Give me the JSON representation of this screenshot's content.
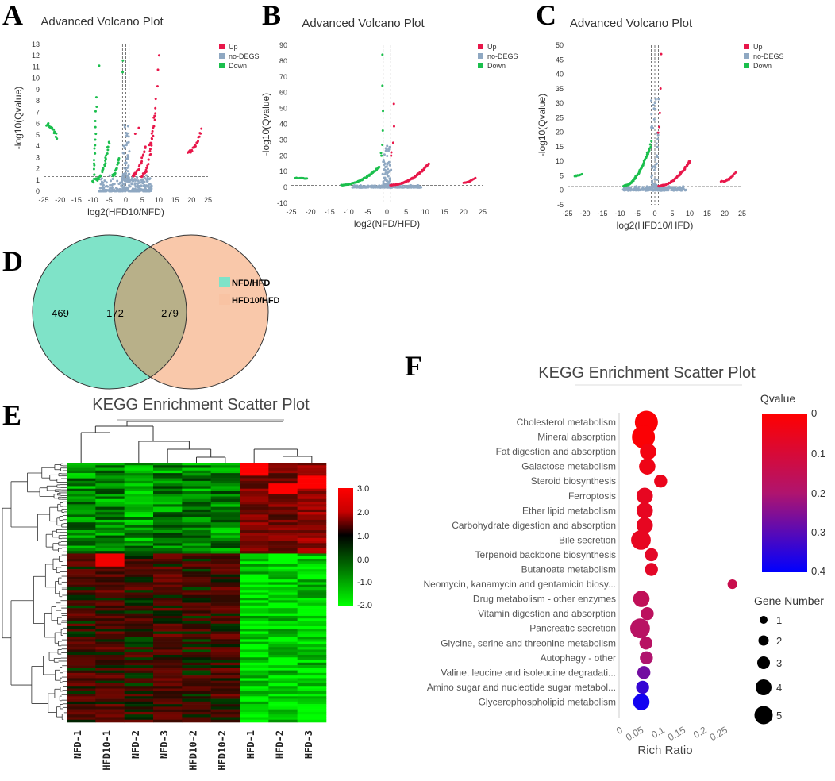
{
  "panel_letters": [
    "A",
    "B",
    "C",
    "D",
    "E",
    "F"
  ],
  "colors": {
    "up": "#e8174a",
    "no": "#8fa8c2",
    "down": "#1bbf4d",
    "venn1": "#7fe3c8",
    "venn2": "#f9c3a3",
    "venn_overlap": "#b8b089"
  },
  "chart_data": [
    {
      "panel": "A",
      "type": "scatter",
      "title": "Advanced Volcano Plot",
      "xlabel": "log2(HFD10/NFD)",
      "ylabel": "-log10(Qvalue)",
      "xlim": [
        -25,
        25
      ],
      "ylim": [
        0,
        13
      ],
      "xticks": [
        -25,
        -20,
        -15,
        -10,
        -5,
        0,
        5,
        10,
        15,
        20,
        25
      ],
      "yticks": [
        0,
        1,
        2,
        3,
        4,
        5,
        6,
        7,
        8,
        9,
        10,
        11,
        12,
        13
      ],
      "threshold_y": 1.3,
      "threshold_x": [
        -1,
        0,
        1
      ],
      "legend": [
        "Up",
        "no-DEGS",
        "Down"
      ],
      "clusters": {
        "down": [
          [
            -24,
            5.9,
            -21,
            4.7,
            18
          ],
          [
            -10,
            0.8,
            -9,
            8.3,
            22
          ],
          [
            -9,
            1.0,
            -5,
            4.5,
            30
          ],
          [
            -8,
            11.2,
            -8,
            11.2,
            1
          ],
          [
            -4,
            1.4,
            -2,
            3,
            20
          ],
          [
            -1,
            10.5,
            -1,
            11.5,
            2
          ]
        ],
        "up": [
          [
            5,
            1.4,
            9,
            7,
            30
          ],
          [
            7,
            4,
            10,
            12,
            12
          ],
          [
            19,
            3.5,
            23,
            5.4,
            20
          ],
          [
            2,
            1.4,
            6,
            4,
            25
          ],
          [
            3,
            5,
            4,
            5.5,
            2
          ]
        ],
        "no": [
          [
            -8,
            0,
            8,
            1.3,
            260
          ],
          [
            -1,
            1,
            1,
            6.5,
            60
          ]
        ]
      }
    },
    {
      "panel": "B",
      "type": "scatter",
      "title": "Advanced Volcano Plot",
      "xlabel": "log2(NFD/HFD)",
      "ylabel": "-log10(Qvalue)",
      "xlim": [
        -25,
        25
      ],
      "ylim": [
        -10,
        90
      ],
      "xticks": [
        -25,
        -20,
        -15,
        -10,
        -5,
        0,
        5,
        10,
        15,
        20,
        25
      ],
      "yticks": [
        -10,
        0,
        10,
        20,
        30,
        40,
        50,
        60,
        70,
        80,
        90
      ],
      "threshold_y": 1.3,
      "threshold_x": [
        -1,
        0,
        1
      ],
      "legend": [
        "Up",
        "no-DEGS",
        "Down"
      ],
      "clusters": {
        "down": [
          [
            -24,
            6,
            -21,
            5.5,
            12
          ],
          [
            -12,
            1.5,
            -2,
            13,
            70
          ],
          [
            -1.5,
            20,
            -1,
            84,
            7
          ]
        ],
        "up": [
          [
            1,
            1.5,
            11,
            15,
            90
          ],
          [
            20,
            3,
            23,
            6,
            14
          ],
          [
            1,
            20,
            2,
            53,
            5
          ]
        ],
        "no": [
          [
            -9,
            0,
            9,
            1.3,
            260
          ],
          [
            -1,
            1,
            1,
            28,
            70
          ]
        ]
      }
    },
    {
      "panel": "C",
      "type": "scatter",
      "title": "Advanced Volcano Plot",
      "xlabel": "log2(HFD10/HFD)",
      "ylabel": "-log10(Qvalue)",
      "xlim": [
        -25,
        25
      ],
      "ylim": [
        -5,
        50
      ],
      "xticks": [
        -25,
        -20,
        -15,
        -10,
        -5,
        0,
        5,
        10,
        15,
        20,
        25
      ],
      "yticks": [
        -5,
        0,
        5,
        10,
        15,
        20,
        25,
        30,
        35,
        40,
        45,
        50
      ],
      "threshold_y": 1.3,
      "threshold_x": [
        -1,
        0,
        1
      ],
      "legend": [
        "Up",
        "no-DEGS",
        "Down"
      ],
      "clusters": {
        "down": [
          [
            -23,
            5,
            -21,
            5.5,
            10
          ],
          [
            -9,
            1.5,
            -2,
            13,
            60
          ],
          [
            -2,
            13,
            -1,
            17,
            8
          ]
        ],
        "up": [
          [
            1,
            1.5,
            10,
            10,
            70
          ],
          [
            19,
            3,
            23,
            6,
            16
          ],
          [
            1,
            20,
            2,
            47,
            5
          ]
        ],
        "no": [
          [
            -9,
            0,
            9,
            1.3,
            260
          ],
          [
            -1,
            1,
            1,
            32,
            60
          ]
        ]
      }
    },
    {
      "panel": "D",
      "type": "venn",
      "sets": [
        "NFD/HFD",
        "HFD10/HFD"
      ],
      "values": {
        "only_a": "469",
        "both": "172",
        "only_b": "279"
      }
    },
    {
      "panel": "E",
      "type": "heatmap",
      "title": "KEGG Enrichment Scatter Plot",
      "columns": [
        "NFD-1",
        "HFD10-1",
        "NFD-2",
        "NFD-3",
        "HFD10-2",
        "HFD10-2",
        "HFD-1",
        "HFD-2",
        "HFD-3"
      ],
      "colorbar": {
        "ticks": [
          "3.0",
          "2.0",
          "1.0",
          "0.0",
          "-1.0",
          "-2.0"
        ],
        "range": [
          -2,
          3
        ]
      },
      "rows": 100,
      "row_groups": [
        {
          "from": 0,
          "to": 35,
          "means": [
            -1.0,
            -1.0,
            -1.1,
            -1.0,
            -1.0,
            -1.0,
            1.2,
            1.0,
            1.5
          ]
        },
        {
          "from": 35,
          "to": 100,
          "means": [
            0.4,
            0.5,
            0.3,
            0.5,
            0.3,
            0.5,
            -1.7,
            -1.7,
            -1.7
          ]
        }
      ]
    },
    {
      "panel": "F",
      "type": "scatter",
      "title": "KEGG Enrichment Scatter Plot",
      "xlabel": "Rich Ratio",
      "xticks": [
        "0",
        "0.05",
        "0.1",
        "0.15",
        "0.2",
        "0.25"
      ],
      "xlim": [
        -0.01,
        0.27
      ],
      "colorbar": {
        "title": "Qvalue",
        "ticks": [
          "0",
          "0.1",
          "0.2",
          "0.3",
          "0.4"
        ],
        "range": [
          0,
          0.4
        ]
      },
      "size_legend": {
        "title": "Gene Number",
        "values": [
          "1",
          "2",
          "3",
          "4",
          "5"
        ]
      },
      "terms": [
        {
          "name": "Cholesterol metabolism",
          "rich": 0.055,
          "q": 0.01,
          "n": 5
        },
        {
          "name": "Mineral absorption",
          "rich": 0.048,
          "q": 0.01,
          "n": 5
        },
        {
          "name": "Fat digestion and absorption",
          "rich": 0.059,
          "q": 0.03,
          "n": 3
        },
        {
          "name": "Galactose metabolism",
          "rich": 0.057,
          "q": 0.04,
          "n": 3
        },
        {
          "name": "Steroid biosynthesis",
          "rich": 0.089,
          "q": 0.05,
          "n": 2
        },
        {
          "name": "Ferroptosis",
          "rich": 0.051,
          "q": 0.06,
          "n": 3
        },
        {
          "name": "Ether lipid metabolism",
          "rich": 0.051,
          "q": 0.06,
          "n": 3
        },
        {
          "name": "Carbohydrate digestion and absorption",
          "rich": 0.051,
          "q": 0.06,
          "n": 3
        },
        {
          "name": "Bile secretion",
          "rich": 0.042,
          "q": 0.06,
          "n": 4
        },
        {
          "name": "Terpenoid backbone biosynthesis",
          "rich": 0.067,
          "q": 0.07,
          "n": 2
        },
        {
          "name": "Butanoate metabolism",
          "rich": 0.067,
          "q": 0.07,
          "n": 2
        },
        {
          "name": "Neomycin, kanamycin and gentamicin biosy...",
          "rich": 0.26,
          "q": 0.14,
          "n": 1
        },
        {
          "name": "Drug metabolism - other enzymes",
          "rich": 0.043,
          "q": 0.16,
          "n": 3
        },
        {
          "name": "Vitamin digestion and absorption",
          "rich": 0.057,
          "q": 0.17,
          "n": 2
        },
        {
          "name": "Pancreatic secretion",
          "rich": 0.04,
          "q": 0.18,
          "n": 4
        },
        {
          "name": "Glycine, serine and threonine metabolism",
          "rich": 0.054,
          "q": 0.18,
          "n": 2
        },
        {
          "name": "Autophagy - other",
          "rich": 0.055,
          "q": 0.2,
          "n": 2
        },
        {
          "name": "Valine, leucine and isoleucine degradati...",
          "rich": 0.049,
          "q": 0.27,
          "n": 2
        },
        {
          "name": "Amino sugar and nucleotide sugar metabol...",
          "rich": 0.046,
          "q": 0.34,
          "n": 2
        },
        {
          "name": "Glycerophospholipid metabolism",
          "rich": 0.043,
          "q": 0.38,
          "n": 3
        }
      ]
    }
  ]
}
